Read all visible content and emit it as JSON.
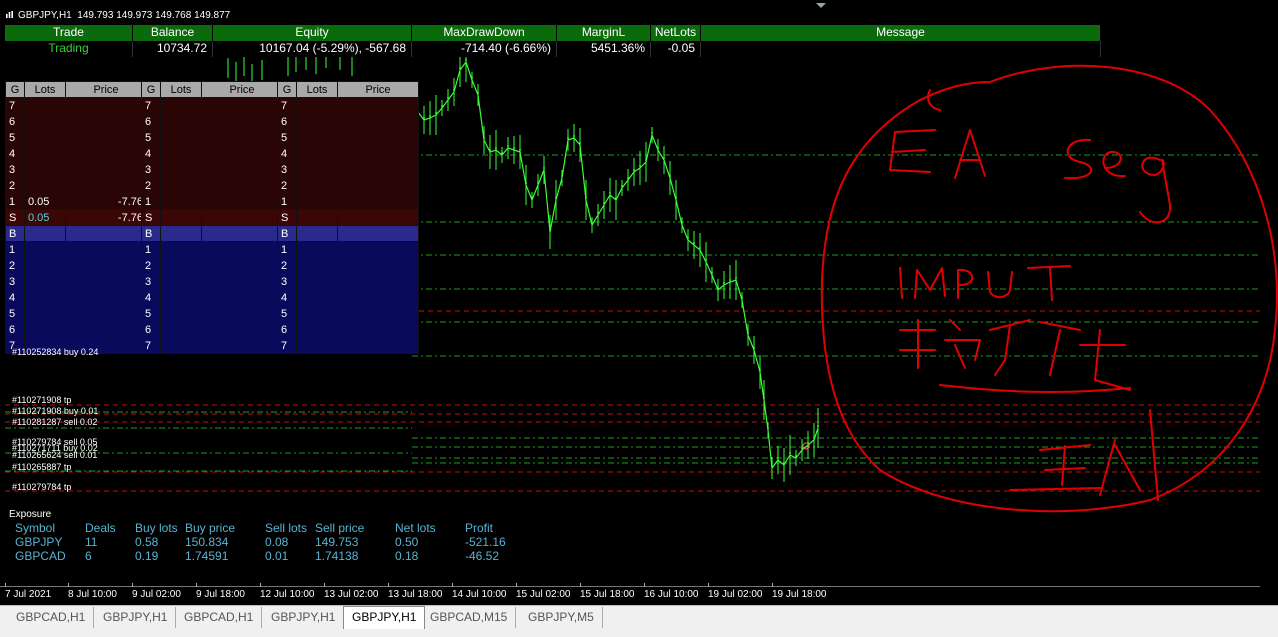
{
  "window": {
    "symbol_title": "GBPJPY,H1  149.793 149.973 149.768 149.877",
    "accent_up_color": "#39ff39",
    "handwriting_color": "#e00000"
  },
  "summary": {
    "headers": [
      "Trade",
      "Balance",
      "Equity",
      "MaxDrawDown",
      "MarginL",
      "NetLots",
      "Message"
    ],
    "values": {
      "trade": "Trading",
      "balance": "10734.72",
      "equity": "10167.04 (-5.29%), -567.68",
      "maxdrawdown": "-714.40 (-6.66%)",
      "marginl": "5451.36%",
      "netlots": "-0.05",
      "message": ""
    }
  },
  "grid_panels": {
    "headers": [
      "G",
      "Lots",
      "Price"
    ],
    "sell_rows": [
      "7",
      "6",
      "5",
      "4",
      "3",
      "2",
      "1",
      "S"
    ],
    "mid_row": "B",
    "buy_rows": [
      "1",
      "2",
      "3",
      "4",
      "5",
      "6",
      "7"
    ],
    "panel1_row1": {
      "lots": "0.05",
      "price": "-7.76"
    },
    "panel1_rowS": {
      "lots": "0.05",
      "price": "-7.76"
    }
  },
  "order_labels": [
    "#110271908 tp",
    "#110271908 buy 0.01",
    "#110281287 sell 0.02",
    "#110279784 sell 0.05",
    "#110271711 buy 0.02",
    "#110265624 sell 0.01",
    "#110265887 tp",
    "#110279784 tp",
    "#110252834 buy 0.24"
  ],
  "exposure": {
    "title": "Exposure",
    "headers": [
      "Symbol",
      "Deals",
      "Buy lots",
      "Buy price",
      "Sell lots",
      "Sell price",
      "Net lots",
      "Profit"
    ],
    "rows": [
      [
        "GBPJPY",
        "11",
        "0.58",
        "150.834",
        "0.08",
        "149.753",
        "0.50",
        "-521.16"
      ],
      [
        "GBPCAD",
        "6",
        "0.19",
        "1.74591",
        "0.01",
        "1.74138",
        "0.18",
        "-46.52"
      ]
    ]
  },
  "xaxis": {
    "ticks": [
      "7 Jul 2021",
      "8 Jul 10:00",
      "9 Jul 02:00",
      "9 Jul 18:00",
      "12 Jul 10:00",
      "13 Jul 02:00",
      "13 Jul 18:00",
      "14 Jul 10:00",
      "15 Jul 02:00",
      "15 Jul 18:00",
      "16 Jul 10:00",
      "19 Jul 02:00",
      "19 Jul 18:00"
    ]
  },
  "tabs": [
    "GBPCAD,H1",
    "GBPJPY,H1",
    "GBPCAD,H1",
    "GBPJPY,H1",
    "GBPJPY,H1",
    "GBPCAD,M15",
    "GBPJPY,M5"
  ],
  "active_tab_index": 4,
  "annotation": {
    "handwritten_text": [
      "EA Seg",
      "INPUT",
      "也士么皮",
      "五人"
    ]
  }
}
